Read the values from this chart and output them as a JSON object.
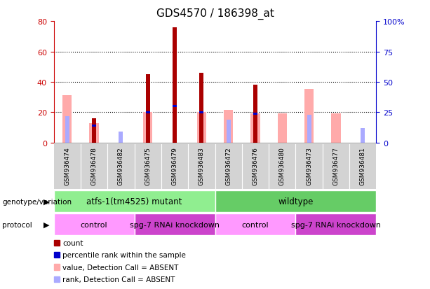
{
  "title": "GDS4570 / 186398_at",
  "samples": [
    "GSM936474",
    "GSM936478",
    "GSM936482",
    "GSM936475",
    "GSM936479",
    "GSM936483",
    "GSM936472",
    "GSM936476",
    "GSM936480",
    "GSM936473",
    "GSM936477",
    "GSM936481"
  ],
  "count": [
    0,
    16,
    0,
    45,
    76,
    46,
    0,
    38,
    0,
    0,
    0,
    0
  ],
  "percentile_rank": [
    0,
    14,
    0,
    25,
    30,
    25,
    0,
    24,
    0,
    0,
    0,
    0
  ],
  "value_absent": [
    39,
    16,
    0,
    25,
    0,
    25,
    27,
    24,
    24,
    44,
    24,
    0
  ],
  "rank_absent": [
    22,
    0,
    9,
    0,
    0,
    0,
    19,
    0,
    0,
    23,
    0,
    12
  ],
  "ylim_left": [
    0,
    80
  ],
  "ylim_right": [
    0,
    100
  ],
  "yticks_left": [
    0,
    20,
    40,
    60,
    80
  ],
  "yticks_right": [
    0,
    25,
    50,
    75,
    100
  ],
  "ytick_labels_right": [
    "0",
    "25",
    "50",
    "75",
    "100%"
  ],
  "color_count": "#aa0000",
  "color_percentile": "#0000cc",
  "color_value_absent": "#ffaaaa",
  "color_rank_absent": "#aaaaff",
  "color_left_tick": "#cc0000",
  "color_right_tick": "#0000cc",
  "color_sample_bg": "#d3d3d3",
  "genotype_groups": [
    {
      "label": "atfs-1(tm4525) mutant",
      "start": 0,
      "end": 6,
      "color": "#90ee90"
    },
    {
      "label": "wildtype",
      "start": 6,
      "end": 12,
      "color": "#66cc66"
    }
  ],
  "protocol_groups": [
    {
      "label": "control",
      "start": 0,
      "end": 3,
      "color": "#ff99ff"
    },
    {
      "label": "spg-7 RNAi knockdown",
      "start": 3,
      "end": 6,
      "color": "#cc44cc"
    },
    {
      "label": "control",
      "start": 6,
      "end": 9,
      "color": "#ff99ff"
    },
    {
      "label": "spg-7 RNAi knockdown",
      "start": 9,
      "end": 12,
      "color": "#cc44cc"
    }
  ],
  "legend_items": [
    {
      "label": "count",
      "color": "#aa0000"
    },
    {
      "label": "percentile rank within the sample",
      "color": "#0000cc"
    },
    {
      "label": "value, Detection Call = ABSENT",
      "color": "#ffaaaa"
    },
    {
      "label": "rank, Detection Call = ABSENT",
      "color": "#aaaaff"
    }
  ],
  "bar_width": 0.35,
  "figsize": [
    6.13,
    4.14
  ],
  "dpi": 100
}
